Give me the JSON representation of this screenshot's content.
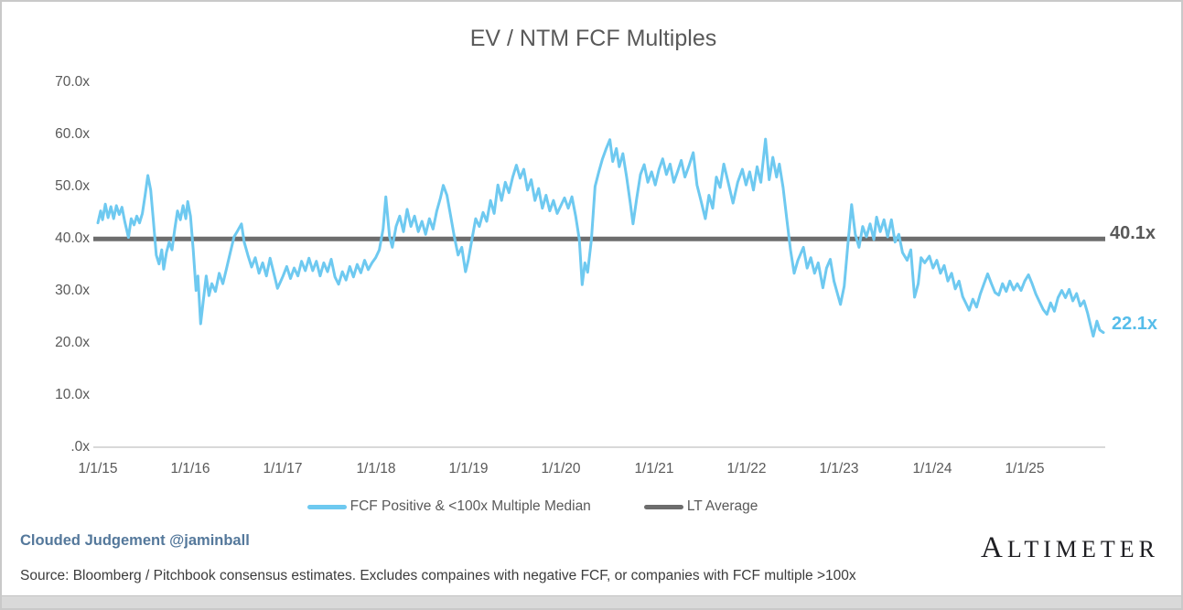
{
  "chart_data": {
    "type": "line",
    "title": "EV / NTM FCF Multiples",
    "x_axis": {
      "tick_labels": [
        "1/1/15",
        "1/1/16",
        "1/1/17",
        "1/1/18",
        "1/1/19",
        "1/1/20",
        "1/1/21",
        "1/1/22",
        "1/1/23",
        "1/1/24",
        "1/1/25"
      ]
    },
    "y_axis": {
      "tick_labels": [
        "70.0x",
        "60.0x",
        "50.0x",
        "40.0x",
        "30.0x",
        "20.0x",
        "10.0x",
        ".0x"
      ],
      "min": 0,
      "max": 70,
      "unit": "x (EV / NTM FCF multiple)"
    },
    "grid": "off",
    "legend_position": "bottom",
    "legend": [
      {
        "label": "FCF Positive & <100x Multiple Median",
        "color": "#6ec9f0"
      },
      {
        "label": "LT Average",
        "color": "#6d6d6d"
      }
    ],
    "annotations": [
      {
        "name": "lt-average-value",
        "text": "40.1x",
        "value": 40.1,
        "color": "#595959"
      },
      {
        "name": "latest-value",
        "text": "22.1x",
        "value": 22.1,
        "color": "#56bdea"
      }
    ],
    "series": [
      {
        "name": "FCF Positive & <100x Multiple Median",
        "color": "#6ec9f0",
        "points_format": "[years_since_2015_01_01, multiple]",
        "points": [
          [
            0.0,
            43.2
          ],
          [
            0.03,
            45.5
          ],
          [
            0.05,
            43.8
          ],
          [
            0.08,
            46.8
          ],
          [
            0.11,
            44.2
          ],
          [
            0.14,
            46.3
          ],
          [
            0.17,
            44.0
          ],
          [
            0.2,
            46.5
          ],
          [
            0.23,
            44.8
          ],
          [
            0.26,
            46.2
          ],
          [
            0.29,
            43.5
          ],
          [
            0.33,
            40.4
          ],
          [
            0.36,
            44.0
          ],
          [
            0.39,
            42.8
          ],
          [
            0.42,
            44.5
          ],
          [
            0.45,
            43.2
          ],
          [
            0.48,
            45.0
          ],
          [
            0.51,
            48.5
          ],
          [
            0.54,
            52.3
          ],
          [
            0.57,
            49.5
          ],
          [
            0.6,
            43.5
          ],
          [
            0.63,
            37.0
          ],
          [
            0.66,
            35.3
          ],
          [
            0.69,
            38.0
          ],
          [
            0.71,
            34.3
          ],
          [
            0.74,
            37.5
          ],
          [
            0.77,
            39.5
          ],
          [
            0.8,
            38.0
          ],
          [
            0.83,
            42.0
          ],
          [
            0.86,
            45.5
          ],
          [
            0.89,
            43.8
          ],
          [
            0.92,
            46.5
          ],
          [
            0.95,
            44.0
          ],
          [
            0.97,
            47.3
          ],
          [
            1.0,
            44.5
          ],
          [
            1.03,
            38.0
          ],
          [
            1.06,
            30.2
          ],
          [
            1.08,
            33.0
          ],
          [
            1.11,
            23.8
          ],
          [
            1.14,
            28.5
          ],
          [
            1.17,
            33.0
          ],
          [
            1.2,
            29.2
          ],
          [
            1.23,
            31.5
          ],
          [
            1.27,
            30.0
          ],
          [
            1.31,
            33.5
          ],
          [
            1.35,
            31.5
          ],
          [
            1.39,
            34.5
          ],
          [
            1.43,
            37.5
          ],
          [
            1.47,
            40.5
          ],
          [
            1.51,
            41.7
          ],
          [
            1.55,
            43.0
          ],
          [
            1.58,
            39.5
          ],
          [
            1.62,
            37.0
          ],
          [
            1.66,
            34.7
          ],
          [
            1.7,
            36.5
          ],
          [
            1.74,
            33.5
          ],
          [
            1.78,
            35.5
          ],
          [
            1.82,
            33.0
          ],
          [
            1.86,
            36.4
          ],
          [
            1.9,
            33.5
          ],
          [
            1.94,
            30.6
          ],
          [
            1.97,
            31.8
          ],
          [
            2.0,
            33.0
          ],
          [
            2.04,
            34.8
          ],
          [
            2.08,
            32.5
          ],
          [
            2.12,
            34.5
          ],
          [
            2.16,
            33.0
          ],
          [
            2.2,
            35.8
          ],
          [
            2.24,
            34.0
          ],
          [
            2.28,
            36.4
          ],
          [
            2.32,
            34.0
          ],
          [
            2.36,
            35.8
          ],
          [
            2.4,
            33.0
          ],
          [
            2.44,
            35.5
          ],
          [
            2.48,
            33.8
          ],
          [
            2.52,
            36.2
          ],
          [
            2.56,
            32.8
          ],
          [
            2.6,
            31.4
          ],
          [
            2.64,
            33.8
          ],
          [
            2.68,
            32.2
          ],
          [
            2.72,
            34.8
          ],
          [
            2.76,
            32.8
          ],
          [
            2.8,
            35.2
          ],
          [
            2.84,
            33.6
          ],
          [
            2.88,
            36.0
          ],
          [
            2.92,
            34.2
          ],
          [
            2.96,
            35.5
          ],
          [
            3.0,
            36.5
          ],
          [
            3.04,
            38.0
          ],
          [
            3.08,
            42.0
          ],
          [
            3.11,
            48.2
          ],
          [
            3.15,
            40.5
          ],
          [
            3.18,
            38.5
          ],
          [
            3.22,
            42.5
          ],
          [
            3.26,
            44.5
          ],
          [
            3.3,
            41.5
          ],
          [
            3.34,
            45.8
          ],
          [
            3.38,
            42.5
          ],
          [
            3.42,
            44.5
          ],
          [
            3.46,
            41.5
          ],
          [
            3.5,
            43.5
          ],
          [
            3.54,
            41.0
          ],
          [
            3.58,
            44.0
          ],
          [
            3.62,
            42.0
          ],
          [
            3.66,
            45.5
          ],
          [
            3.7,
            48.0
          ],
          [
            3.73,
            50.4
          ],
          [
            3.77,
            48.5
          ],
          [
            3.81,
            44.5
          ],
          [
            3.85,
            40.5
          ],
          [
            3.89,
            37.0
          ],
          [
            3.93,
            38.5
          ],
          [
            3.97,
            33.8
          ],
          [
            4.0,
            36.0
          ],
          [
            4.04,
            40.0
          ],
          [
            4.08,
            44.0
          ],
          [
            4.12,
            42.5
          ],
          [
            4.16,
            45.2
          ],
          [
            4.2,
            43.5
          ],
          [
            4.24,
            47.5
          ],
          [
            4.28,
            45.0
          ],
          [
            4.32,
            50.5
          ],
          [
            4.36,
            47.5
          ],
          [
            4.4,
            51.0
          ],
          [
            4.44,
            49.0
          ],
          [
            4.48,
            52.0
          ],
          [
            4.52,
            54.3
          ],
          [
            4.56,
            51.8
          ],
          [
            4.6,
            53.5
          ],
          [
            4.64,
            49.5
          ],
          [
            4.68,
            51.5
          ],
          [
            4.72,
            47.5
          ],
          [
            4.76,
            49.8
          ],
          [
            4.8,
            46.0
          ],
          [
            4.84,
            48.5
          ],
          [
            4.88,
            45.5
          ],
          [
            4.92,
            47.5
          ],
          [
            4.96,
            45.0
          ],
          [
            5.0,
            46.5
          ],
          [
            5.04,
            48.0
          ],
          [
            5.08,
            46.0
          ],
          [
            5.12,
            48.2
          ],
          [
            5.16,
            44.5
          ],
          [
            5.2,
            40.0
          ],
          [
            5.23,
            31.3
          ],
          [
            5.26,
            35.5
          ],
          [
            5.29,
            33.7
          ],
          [
            5.33,
            40.0
          ],
          [
            5.37,
            50.2
          ],
          [
            5.41,
            53.0
          ],
          [
            5.45,
            55.5
          ],
          [
            5.49,
            57.5
          ],
          [
            5.53,
            59.2
          ],
          [
            5.56,
            55.0
          ],
          [
            5.6,
            57.5
          ],
          [
            5.63,
            54.0
          ],
          [
            5.67,
            56.5
          ],
          [
            5.71,
            52.0
          ],
          [
            5.75,
            47.0
          ],
          [
            5.78,
            43.0
          ],
          [
            5.82,
            48.0
          ],
          [
            5.86,
            52.5
          ],
          [
            5.9,
            54.4
          ],
          [
            5.94,
            51.0
          ],
          [
            5.98,
            53.0
          ],
          [
            6.02,
            50.5
          ],
          [
            6.06,
            53.5
          ],
          [
            6.1,
            55.5
          ],
          [
            6.14,
            52.5
          ],
          [
            6.18,
            54.5
          ],
          [
            6.22,
            51.0
          ],
          [
            6.26,
            53.0
          ],
          [
            6.3,
            55.2
          ],
          [
            6.34,
            52.0
          ],
          [
            6.38,
            54.0
          ],
          [
            6.43,
            56.7
          ],
          [
            6.47,
            50.5
          ],
          [
            6.52,
            47.0
          ],
          [
            6.56,
            44.0
          ],
          [
            6.6,
            48.5
          ],
          [
            6.64,
            46.0
          ],
          [
            6.68,
            52.0
          ],
          [
            6.72,
            50.0
          ],
          [
            6.76,
            54.5
          ],
          [
            6.8,
            51.5
          ],
          [
            6.86,
            47.0
          ],
          [
            6.91,
            51.0
          ],
          [
            6.96,
            53.5
          ],
          [
            7.0,
            50.5
          ],
          [
            7.04,
            53.0
          ],
          [
            7.08,
            49.5
          ],
          [
            7.12,
            54.0
          ],
          [
            7.16,
            51.0
          ],
          [
            7.21,
            59.3
          ],
          [
            7.25,
            51.5
          ],
          [
            7.29,
            55.8
          ],
          [
            7.33,
            52.0
          ],
          [
            7.36,
            54.5
          ],
          [
            7.4,
            50.0
          ],
          [
            7.44,
            44.0
          ],
          [
            7.48,
            38.0
          ],
          [
            7.52,
            33.5
          ],
          [
            7.56,
            36.0
          ],
          [
            7.62,
            38.5
          ],
          [
            7.66,
            34.5
          ],
          [
            7.7,
            36.5
          ],
          [
            7.74,
            33.5
          ],
          [
            7.78,
            35.5
          ],
          [
            7.83,
            30.7
          ],
          [
            7.87,
            34.5
          ],
          [
            7.91,
            36.2
          ],
          [
            7.95,
            32.0
          ],
          [
            8.02,
            27.5
          ],
          [
            8.06,
            31.0
          ],
          [
            8.1,
            39.0
          ],
          [
            8.14,
            46.7
          ],
          [
            8.18,
            41.0
          ],
          [
            8.22,
            38.5
          ],
          [
            8.26,
            42.5
          ],
          [
            8.3,
            40.5
          ],
          [
            8.34,
            43.0
          ],
          [
            8.38,
            40.0
          ],
          [
            8.41,
            44.3
          ],
          [
            8.45,
            41.5
          ],
          [
            8.49,
            43.8
          ],
          [
            8.53,
            40.5
          ],
          [
            8.57,
            43.8
          ],
          [
            8.61,
            39.5
          ],
          [
            8.65,
            41.0
          ],
          [
            8.69,
            37.5
          ],
          [
            8.74,
            36.0
          ],
          [
            8.78,
            38.0
          ],
          [
            8.82,
            28.9
          ],
          [
            8.86,
            31.5
          ],
          [
            8.89,
            36.5
          ],
          [
            8.93,
            35.5
          ],
          [
            8.98,
            36.8
          ],
          [
            9.02,
            34.5
          ],
          [
            9.06,
            36.0
          ],
          [
            9.1,
            33.5
          ],
          [
            9.14,
            35.0
          ],
          [
            9.18,
            32.0
          ],
          [
            9.22,
            33.5
          ],
          [
            9.26,
            30.5
          ],
          [
            9.3,
            32.0
          ],
          [
            9.34,
            29.0
          ],
          [
            9.38,
            27.5
          ],
          [
            9.41,
            26.4
          ],
          [
            9.45,
            28.5
          ],
          [
            9.49,
            27.0
          ],
          [
            9.53,
            29.5
          ],
          [
            9.57,
            31.5
          ],
          [
            9.61,
            33.4
          ],
          [
            9.65,
            31.5
          ],
          [
            9.69,
            29.8
          ],
          [
            9.73,
            29.3
          ],
          [
            9.77,
            31.5
          ],
          [
            9.81,
            30.0
          ],
          [
            9.85,
            32.0
          ],
          [
            9.89,
            30.3
          ],
          [
            9.93,
            31.5
          ],
          [
            9.97,
            30.2
          ],
          [
            10.01,
            32.0
          ],
          [
            10.05,
            33.2
          ],
          [
            10.09,
            31.5
          ],
          [
            10.13,
            29.5
          ],
          [
            10.17,
            28.0
          ],
          [
            10.21,
            26.5
          ],
          [
            10.25,
            25.6
          ],
          [
            10.29,
            27.8
          ],
          [
            10.33,
            26.2
          ],
          [
            10.37,
            28.8
          ],
          [
            10.41,
            30.2
          ],
          [
            10.45,
            28.8
          ],
          [
            10.49,
            30.4
          ],
          [
            10.53,
            28.2
          ],
          [
            10.57,
            29.6
          ],
          [
            10.61,
            27.2
          ],
          [
            10.65,
            28.2
          ],
          [
            10.69,
            25.8
          ],
          [
            10.72,
            23.5
          ],
          [
            10.75,
            21.4
          ],
          [
            10.79,
            24.3
          ],
          [
            10.82,
            22.6
          ],
          [
            10.86,
            22.1
          ]
        ]
      },
      {
        "name": "LT Average",
        "color": "#6d6d6d",
        "value": 40.1
      }
    ]
  },
  "footer": {
    "credit": "Clouded Judgement @jaminball",
    "source": "Source: Bloomberg / Pitchbook consensus estimates. Excludes compaines with negative FCF, or companies with FCF multiple >100x",
    "logo": "Altimeter"
  },
  "colors": {
    "title_text": "#595959",
    "axis_text": "#595959",
    "fcf_line": "#6ec9f0",
    "lt_average_line": "#6d6d6d",
    "latest_value_text": "#56bdea",
    "credit_text": "#54789b",
    "axis_baseline": "#d9d9d9"
  }
}
